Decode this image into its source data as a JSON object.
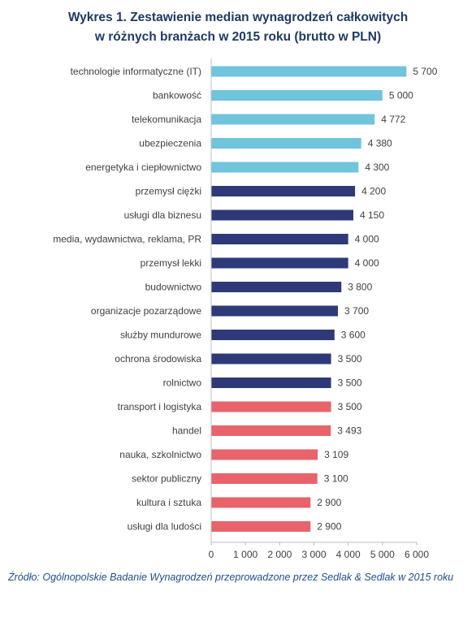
{
  "title": {
    "line1": "Wykres 1. Zestawienie median wynagrodzeń całkowitych",
    "line2": "w różnych branżach w 2015 roku (brutto w PLN)"
  },
  "source": "Źródło: Ogólnopolskie Badanie Wynagrodzeń przeprowadzone przez Sedlak & Sedlak w 2015 roku",
  "colors": {
    "light_blue": "#70c4dc",
    "navy": "#2e3a78",
    "red": "#e8646a",
    "axis": "#bfbfbf",
    "label": "#404040"
  },
  "chart_data": {
    "type": "bar",
    "orientation": "horizontal",
    "title": "Wykres 1. Zestawienie median wynagrodzeń całkowitych w różnych branżach w 2015 roku (brutto w PLN)",
    "xlim": [
      0,
      6000
    ],
    "xticks": [
      "0",
      "1 000",
      "2 000",
      "3 000",
      "4 000",
      "5 000",
      "6 000"
    ],
    "grid": false,
    "categories": [
      "technologie informatyczne (IT)",
      "bankowość",
      "telekomunikacja",
      "ubezpieczenia",
      "energetyka i ciepłownictwo",
      "przemysł ciężki",
      "usługi dla biznesu",
      "media, wydawnictwa, reklama, PR",
      "przemysł lekki",
      "budownictwo",
      "organizacje pozarządowe",
      "służby mundurowe",
      "ochrona środowiska",
      "rolnictwo",
      "transport i logistyka",
      "handel",
      "nauka, szkolnictwo",
      "sektor publiczny",
      "kultura i sztuka",
      "usługi dla ludości"
    ],
    "values": [
      5700,
      5000,
      4772,
      4380,
      4300,
      4200,
      4150,
      4000,
      4000,
      3800,
      3700,
      3600,
      3500,
      3500,
      3500,
      3493,
      3109,
      3100,
      2900,
      2900
    ],
    "value_labels": [
      "5 700",
      "5 000",
      "4 772",
      "4 380",
      "4 300",
      "4 200",
      "4 150",
      "4 000",
      "4 000",
      "3 800",
      "3 700",
      "3 600",
      "3 500",
      "3 500",
      "3 500",
      "3 493",
      "3 109",
      "3 100",
      "2 900",
      "2 900"
    ],
    "bar_colors": [
      "light_blue",
      "light_blue",
      "light_blue",
      "light_blue",
      "light_blue",
      "navy",
      "navy",
      "navy",
      "navy",
      "navy",
      "navy",
      "navy",
      "navy",
      "navy",
      "red",
      "red",
      "red",
      "red",
      "red",
      "red"
    ]
  }
}
